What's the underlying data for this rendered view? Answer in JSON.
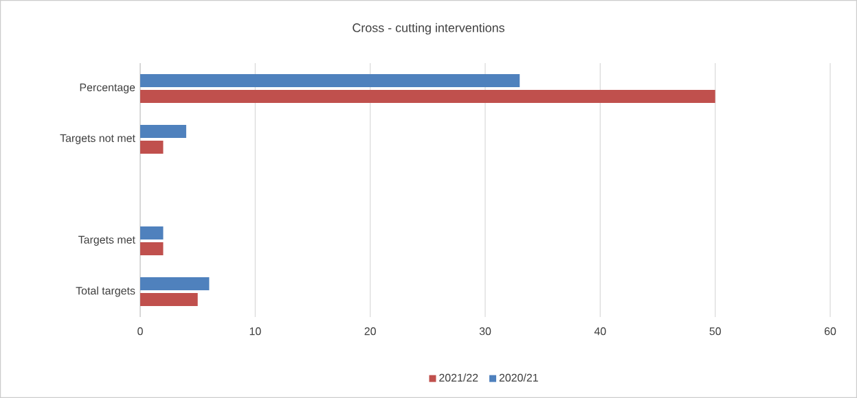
{
  "chart_data": {
    "type": "bar",
    "orientation": "horizontal",
    "title": "Cross - cutting interventions",
    "categories": [
      "Percentage",
      "Targets not met",
      null,
      "Targets met",
      "Total targets"
    ],
    "series": [
      {
        "name": "2021/22",
        "color": "#c0504d",
        "values": [
          50,
          2,
          null,
          2,
          5
        ]
      },
      {
        "name": "2020/21",
        "color": "#4f81bd",
        "values": [
          33,
          4,
          null,
          2,
          6
        ]
      }
    ],
    "xlim": [
      0,
      60
    ],
    "xticks": [
      0,
      10,
      20,
      30,
      40,
      50,
      60
    ],
    "grid": "x",
    "legend": "bottom"
  }
}
